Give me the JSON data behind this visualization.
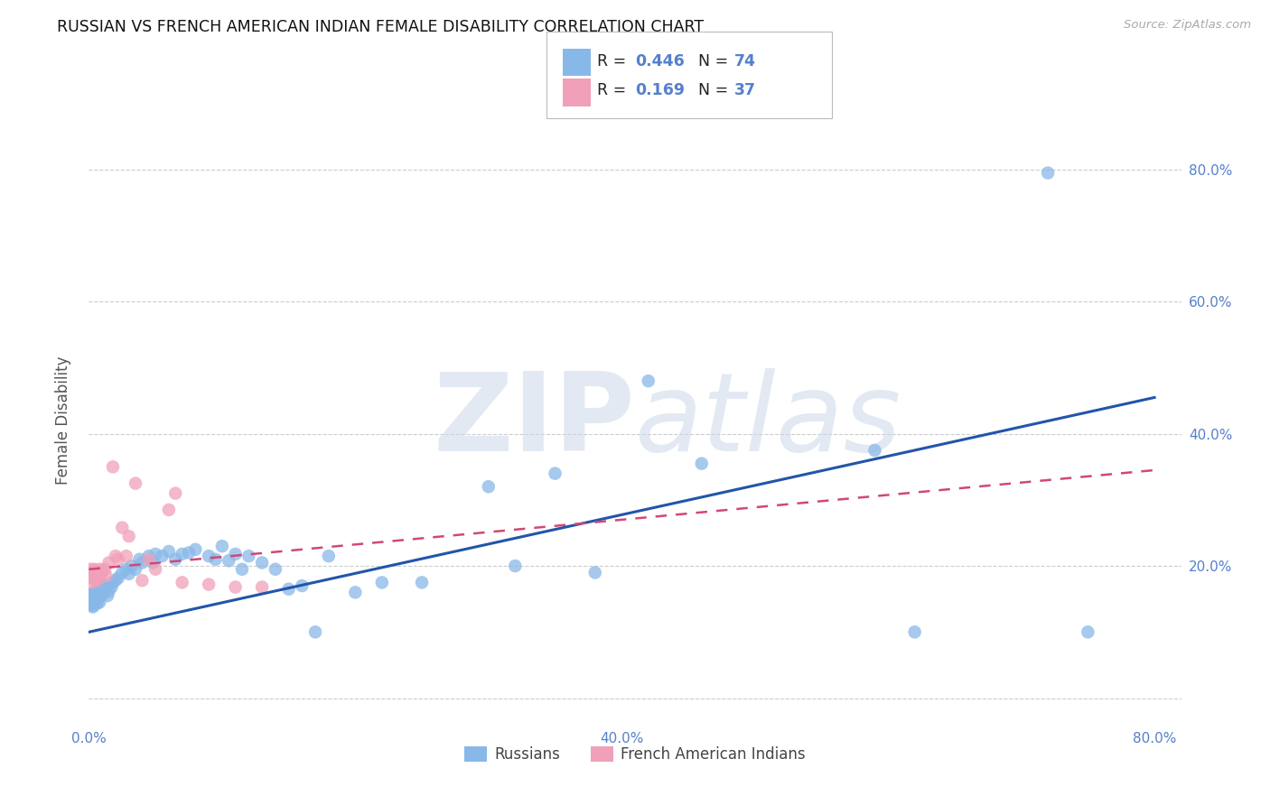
{
  "title": "RUSSIAN VS FRENCH AMERICAN INDIAN FEMALE DISABILITY CORRELATION CHART",
  "source": "Source: ZipAtlas.com",
  "ylabel": "Female Disability",
  "xlim": [
    0.0,
    0.82
  ],
  "ylim": [
    -0.04,
    0.88
  ],
  "xtick_vals": [
    0.0,
    0.2,
    0.4,
    0.6,
    0.8
  ],
  "ytick_vals": [
    0.0,
    0.2,
    0.4,
    0.6,
    0.8
  ],
  "xticklabels": [
    "0.0%",
    "",
    "40.0%",
    "",
    "80.0%"
  ],
  "yticklabels": [
    "",
    "20.0%",
    "40.0%",
    "60.0%",
    "80.0%"
  ],
  "color_blue": "#88b8e8",
  "color_pink": "#f0a0b8",
  "color_blue_line": "#2255aa",
  "color_pink_line": "#d04878",
  "watermark_color": "#ccd8e8",
  "r1": "0.446",
  "n1": "74",
  "r2": "0.169",
  "n2": "37",
  "legend_label1": "Russians",
  "legend_label2": "French American Indians",
  "blue_line_x0": 0.0,
  "blue_line_y0": 0.1,
  "blue_line_x1": 0.8,
  "blue_line_y1": 0.455,
  "pink_line_x0": 0.0,
  "pink_line_y0": 0.195,
  "pink_line_x1": 0.8,
  "pink_line_y1": 0.345,
  "russians_x": [
    0.001,
    0.001,
    0.001,
    0.002,
    0.002,
    0.002,
    0.002,
    0.003,
    0.003,
    0.003,
    0.004,
    0.004,
    0.005,
    0.005,
    0.006,
    0.006,
    0.007,
    0.007,
    0.008,
    0.008,
    0.009,
    0.01,
    0.01,
    0.011,
    0.012,
    0.013,
    0.014,
    0.015,
    0.017,
    0.018,
    0.02,
    0.022,
    0.025,
    0.028,
    0.03,
    0.032,
    0.035,
    0.038,
    0.04,
    0.045,
    0.048,
    0.05,
    0.055,
    0.06,
    0.065,
    0.07,
    0.075,
    0.08,
    0.09,
    0.095,
    0.1,
    0.105,
    0.11,
    0.115,
    0.12,
    0.13,
    0.14,
    0.15,
    0.16,
    0.17,
    0.18,
    0.2,
    0.22,
    0.25,
    0.3,
    0.32,
    0.35,
    0.38,
    0.42,
    0.46,
    0.59,
    0.62,
    0.72,
    0.75
  ],
  "russians_y": [
    0.155,
    0.15,
    0.145,
    0.148,
    0.152,
    0.158,
    0.142,
    0.14,
    0.145,
    0.138,
    0.15,
    0.16,
    0.148,
    0.155,
    0.16,
    0.143,
    0.162,
    0.15,
    0.158,
    0.145,
    0.155,
    0.162,
    0.168,
    0.158,
    0.17,
    0.165,
    0.155,
    0.162,
    0.168,
    0.175,
    0.178,
    0.182,
    0.19,
    0.195,
    0.188,
    0.2,
    0.195,
    0.21,
    0.205,
    0.215,
    0.205,
    0.218,
    0.215,
    0.222,
    0.21,
    0.218,
    0.22,
    0.225,
    0.215,
    0.21,
    0.23,
    0.208,
    0.218,
    0.195,
    0.215,
    0.205,
    0.195,
    0.165,
    0.17,
    0.1,
    0.215,
    0.16,
    0.175,
    0.175,
    0.32,
    0.2,
    0.34,
    0.19,
    0.48,
    0.355,
    0.375,
    0.1,
    0.795,
    0.1
  ],
  "french_x": [
    0.001,
    0.001,
    0.002,
    0.002,
    0.002,
    0.003,
    0.003,
    0.004,
    0.004,
    0.005,
    0.005,
    0.006,
    0.006,
    0.007,
    0.008,
    0.008,
    0.009,
    0.01,
    0.012,
    0.013,
    0.015,
    0.018,
    0.02,
    0.022,
    0.025,
    0.028,
    0.03,
    0.035,
    0.04,
    0.045,
    0.05,
    0.06,
    0.07,
    0.09,
    0.11,
    0.13,
    0.065
  ],
  "french_y": [
    0.195,
    0.185,
    0.19,
    0.175,
    0.182,
    0.192,
    0.185,
    0.195,
    0.188,
    0.19,
    0.178,
    0.185,
    0.178,
    0.19,
    0.188,
    0.195,
    0.185,
    0.192,
    0.195,
    0.185,
    0.205,
    0.35,
    0.215,
    0.21,
    0.258,
    0.215,
    0.245,
    0.325,
    0.178,
    0.21,
    0.195,
    0.285,
    0.175,
    0.172,
    0.168,
    0.168,
    0.31
  ]
}
